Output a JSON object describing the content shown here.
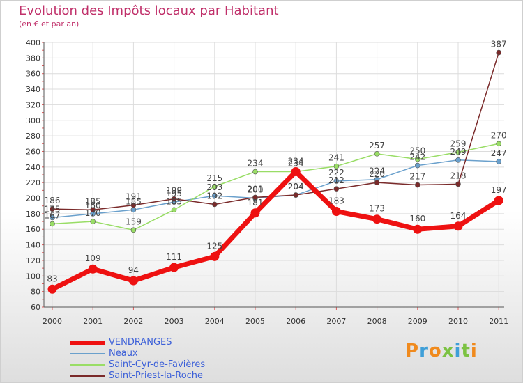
{
  "header": {
    "title": "Evolution des Impôts locaux par Habitant",
    "subtitle": "(en € et par an)"
  },
  "logo": {
    "text": "Proxiti",
    "colors": [
      "#f08a1d",
      "#3f9fd8",
      "#f08a1d",
      "#7cc242",
      "#3f9fd8",
      "#7cc242",
      "#f08a1d"
    ]
  },
  "chart_data": {
    "type": "line",
    "title": "Evolution des Impôts locaux par Habitant",
    "subtitle": "(en € et par an)",
    "xlabel": "",
    "ylabel": "",
    "ylim": [
      60,
      400
    ],
    "ytick_step": 20,
    "grid": true,
    "legend_position": "bottom-left",
    "categories": [
      "2000",
      "2001",
      "2002",
      "2003",
      "2004",
      "2005",
      "2006",
      "2007",
      "2008",
      "2009",
      "2010",
      "2011"
    ],
    "series": [
      {
        "name": "VENDRANGES",
        "color": "#ee1111",
        "emphasis": true,
        "values": [
          83,
          109,
          94,
          111,
          125,
          181,
          234,
          183,
          173,
          160,
          164,
          197
        ]
      },
      {
        "name": "Neaux",
        "color": "#6aa0cc",
        "emphasis": false,
        "values": [
          175,
          180,
          185,
          195,
          203,
          200,
          204,
          222,
          224,
          242,
          249,
          247
        ]
      },
      {
        "name": "Saint-Cyr-de-Favières",
        "color": "#99dd66",
        "emphasis": false,
        "values": [
          167,
          170,
          159,
          185,
          215,
          234,
          234,
          241,
          257,
          250,
          259,
          270
        ]
      },
      {
        "name": "Saint-Priest-la-Roche",
        "color": "#7a2a2a",
        "emphasis": false,
        "values": [
          186,
          185,
          191,
          199,
          192,
          201,
          204,
          212,
          220,
          217,
          218,
          387
        ]
      }
    ]
  }
}
